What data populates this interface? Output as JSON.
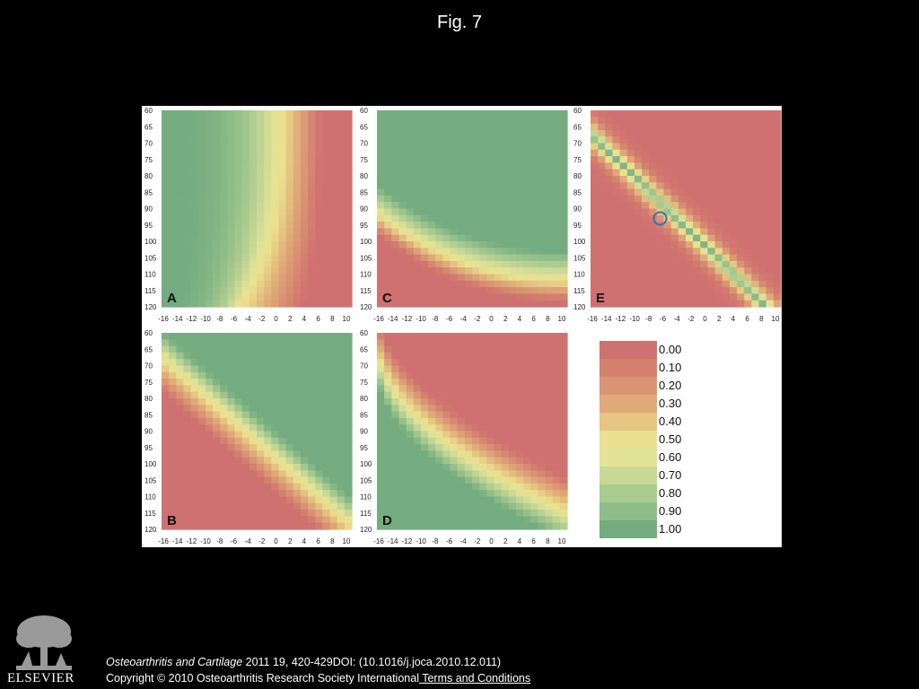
{
  "header": {
    "title": "Fig. 7"
  },
  "footer": {
    "journal": "Osteoarthritis and Cartilage",
    "citation_rest": " 2011 19, 420-429DOI: (10.1016/j.joca.2010.12.011)",
    "copyright": "Copyright © 2010 Osteoarthritis Research Society International",
    "terms_link": " Terms and Conditions",
    "logo_text": "ELSEVIER"
  },
  "chart_data": {
    "type": "heatmap",
    "x_ticks": [
      -16,
      -14,
      -12,
      -10,
      -8,
      -6,
      -4,
      -2,
      0,
      2,
      4,
      6,
      8,
      10
    ],
    "y_ticks": [
      60,
      65,
      70,
      75,
      80,
      85,
      90,
      95,
      100,
      105,
      110,
      115,
      120
    ],
    "xlim": [
      -16,
      10
    ],
    "ylim": [
      60,
      120
    ],
    "color_scale": {
      "values": [
        "0.00",
        "0.10",
        "0.20",
        "0.30",
        "0.40",
        "0.50",
        "0.60",
        "0.70",
        "0.80",
        "0.90",
        "1.00"
      ],
      "colors": [
        "#d07171",
        "#d4806f",
        "#d99573",
        "#dfaa78",
        "#e5c581",
        "#ebe08f",
        "#e3e396",
        "#c8d895",
        "#aacb8f",
        "#8fbd88",
        "#74ac80"
      ]
    },
    "panels": [
      {
        "label": "A",
        "description_pattern": "vertical band",
        "marker": null
      },
      {
        "label": "B",
        "description_pattern": "diagonal band",
        "marker": null
      },
      {
        "label": "C",
        "description_pattern": "lower curve",
        "marker": null
      },
      {
        "label": "D",
        "description_pattern": "upper curve",
        "marker": null
      },
      {
        "label": "E",
        "description_pattern": "diagonal valley",
        "marker": {
          "x": -6.5,
          "y": 93,
          "color": "#3a6fb5"
        }
      }
    ]
  }
}
